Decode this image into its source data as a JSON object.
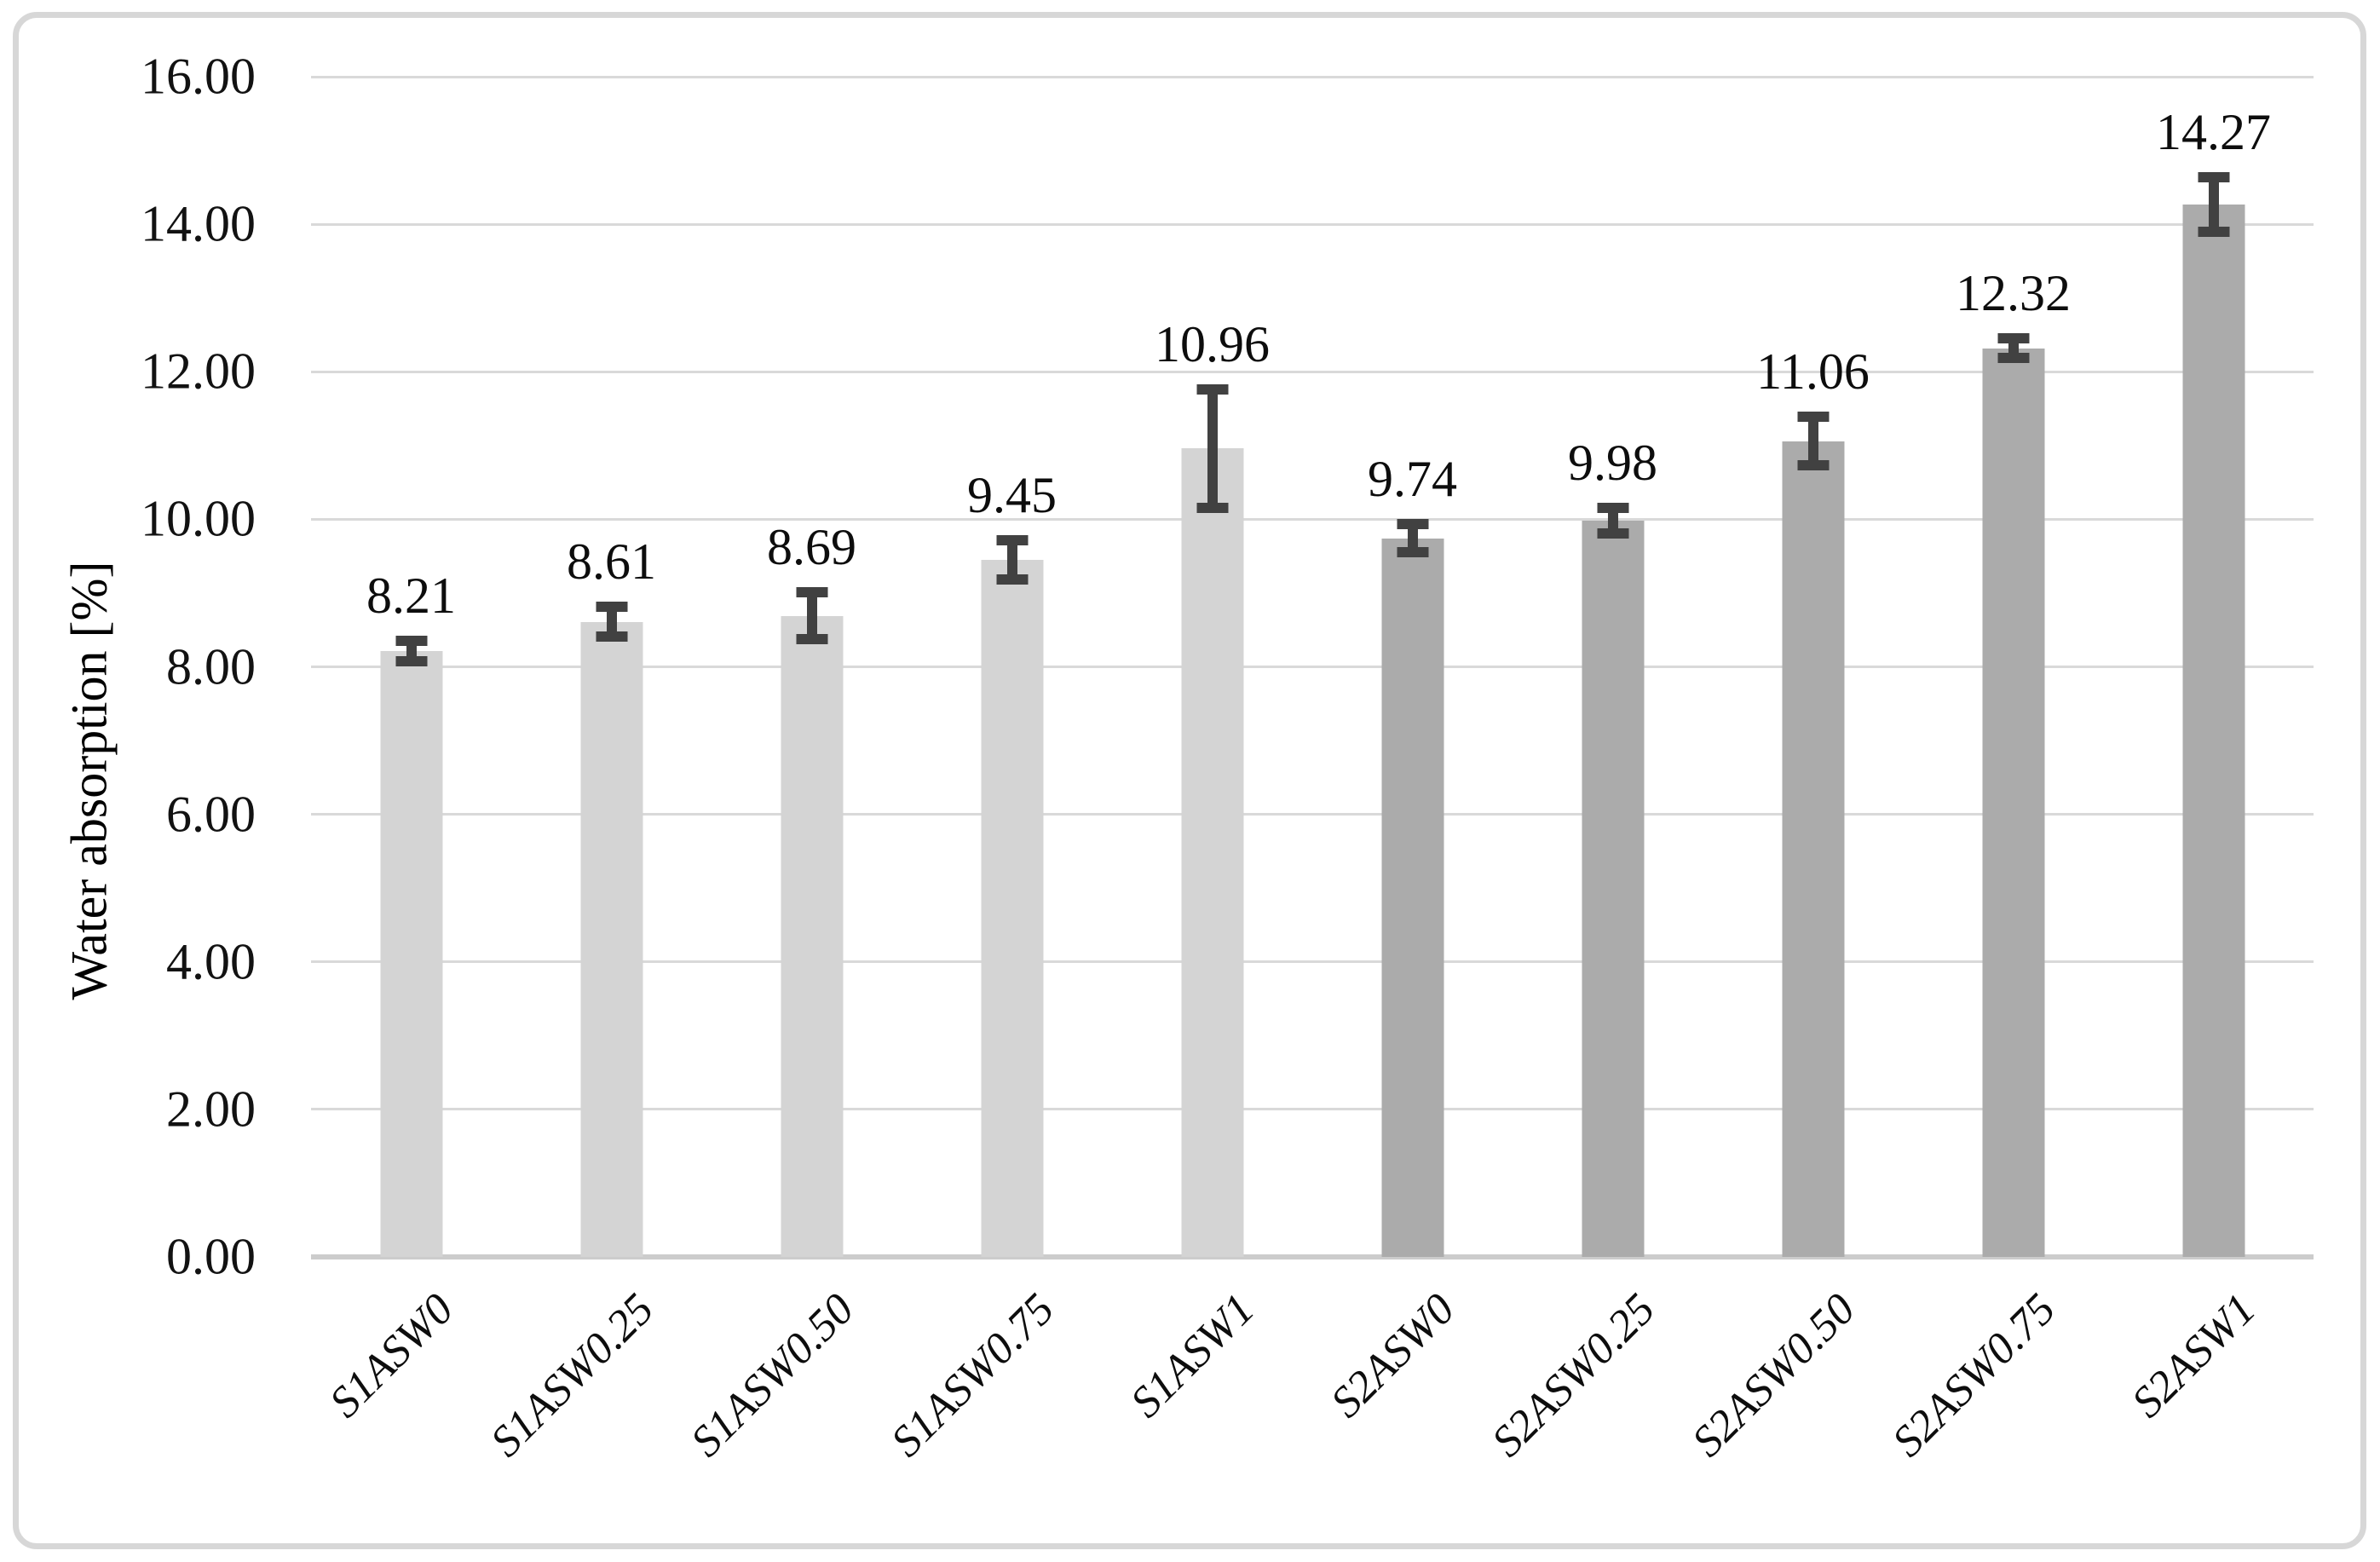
{
  "page": {
    "background": "#ffffff",
    "frame_border_color": "#d7d7d7"
  },
  "chart_data": {
    "type": "bar",
    "title": "",
    "xlabel": "",
    "ylabel": "Water absorption [%]",
    "ylim": [
      0,
      16
    ],
    "ytick_interval": 2,
    "ytick_labels_top_to_bottom": [
      "16.00",
      "14.00",
      "12.00",
      "10.00",
      "8.00",
      "6.00",
      "4.00",
      "2.00",
      "0.00"
    ],
    "grid": "horizontal",
    "legend_position": "none",
    "categories": [
      "S1ASW0",
      "S1ASW0.25",
      "S1ASW0.50",
      "S1ASW0.75",
      "S1ASW1",
      "S2ASW0",
      "S2ASW0.25",
      "S2ASW0.50",
      "S2ASW0.75",
      "S2ASW1"
    ],
    "values": [
      8.21,
      8.61,
      8.69,
      9.45,
      10.96,
      9.74,
      9.98,
      11.06,
      12.32,
      14.27
    ],
    "value_labels": [
      "8.21",
      "8.61",
      "8.69",
      "9.45",
      "10.96",
      "9.74",
      "9.98",
      "11.06",
      "12.32",
      "14.27"
    ],
    "error_bars": [
      0.14,
      0.2,
      0.32,
      0.27,
      0.8,
      0.19,
      0.17,
      0.33,
      0.13,
      0.37
    ],
    "bar_groups": [
      "S1",
      "S1",
      "S1",
      "S1",
      "S1",
      "S2",
      "S2",
      "S2",
      "S2",
      "S2"
    ],
    "group_colors": {
      "S1": "#d4d4d4",
      "S2": "#ababab"
    },
    "error_bar_color": "#414141",
    "gridline_color": "#d9d9d9",
    "axis_line_color": "#cccccc",
    "label_text_color": "#0d0d0d"
  }
}
